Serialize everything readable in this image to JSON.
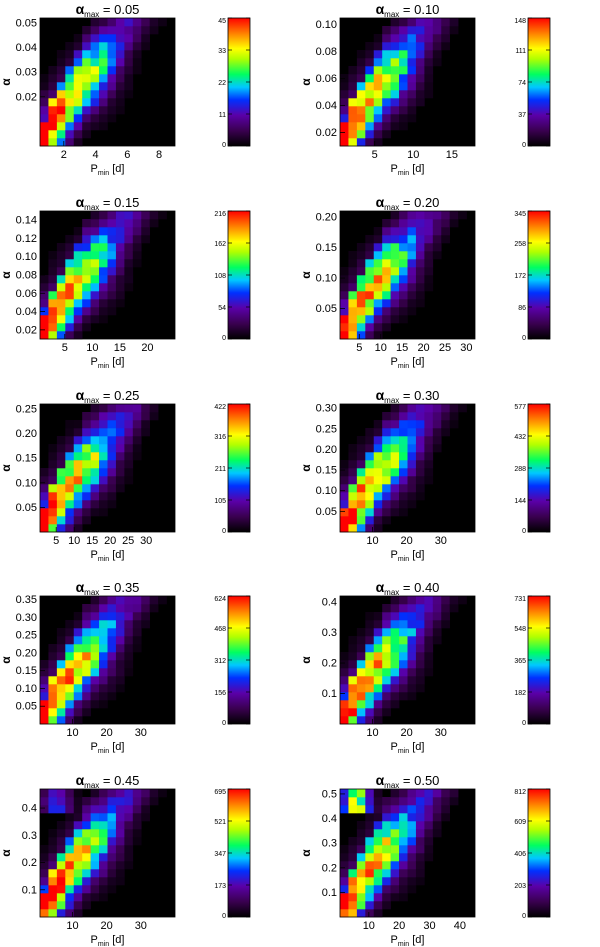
{
  "figure": {
    "title_symbol": "α",
    "title_sub": "max",
    "title_eq": " = ",
    "y_label": "α",
    "x_label_main": "P",
    "x_label_sub": "min",
    "x_label_unit": " [d]"
  },
  "chart_data": [
    {
      "type": "heatmap",
      "alpha_max": "0.05",
      "xlabel": "P_min [d]",
      "ylabel": "α",
      "xlim": [
        0.5,
        9.0
      ],
      "ylim": [
        0.0,
        0.052
      ],
      "x_ticks": [
        2,
        4,
        6,
        8
      ],
      "x_tick_labels": [
        "2",
        "4",
        "6",
        "8"
      ],
      "y_ticks": [
        0.02,
        0.03,
        0.04,
        0.05
      ],
      "y_tick_labels": [
        "0.02",
        "0.03",
        "0.04",
        "0.05"
      ],
      "colorbar_ticks": [
        "0",
        "11",
        "22",
        "33",
        "45"
      ],
      "colorbar_max": 45,
      "peak_count": 45,
      "description_of_peak": "highest density near small P_min and small alpha"
    },
    {
      "type": "heatmap",
      "alpha_max": "0.10",
      "xlabel": "P_min [d]",
      "ylabel": "α",
      "xlim": [
        0.5,
        18.0
      ],
      "ylim": [
        0.01,
        0.105
      ],
      "x_ticks": [
        5,
        10,
        15
      ],
      "x_tick_labels": [
        "5",
        "10",
        "15"
      ],
      "y_ticks": [
        0.02,
        0.04,
        0.06,
        0.08,
        0.1
      ],
      "y_tick_labels": [
        "0.02",
        "0.04",
        "0.06",
        "0.08",
        "0.10"
      ],
      "colorbar_ticks": [
        "0",
        "37",
        "74",
        "111",
        "148"
      ],
      "colorbar_max": 148,
      "peak_count": 148
    },
    {
      "type": "heatmap",
      "alpha_max": "0.15",
      "xlabel": "P_min [d]",
      "ylabel": "α",
      "xlim": [
        0.5,
        25.0
      ],
      "ylim": [
        0.01,
        0.15
      ],
      "x_ticks": [
        5,
        10,
        15,
        20
      ],
      "x_tick_labels": [
        "5",
        "10",
        "15",
        "20"
      ],
      "y_ticks": [
        0.02,
        0.04,
        0.06,
        0.08,
        0.1,
        0.12,
        0.14
      ],
      "y_tick_labels": [
        "0.02",
        "0.04",
        "0.06",
        "0.08",
        "0.10",
        "0.12",
        "0.14"
      ],
      "colorbar_ticks": [
        "0",
        "54",
        "108",
        "162",
        "216"
      ],
      "colorbar_max": 216,
      "peak_count": 216
    },
    {
      "type": "heatmap",
      "alpha_max": "0.20",
      "xlabel": "P_min [d]",
      "ylabel": "α",
      "xlim": [
        0.5,
        32.0
      ],
      "ylim": [
        0.0,
        0.21
      ],
      "x_ticks": [
        5,
        10,
        15,
        20,
        25,
        30
      ],
      "x_tick_labels": [
        "5",
        "10",
        "15",
        "20",
        "25",
        "30"
      ],
      "y_ticks": [
        0.05,
        0.1,
        0.15,
        0.2
      ],
      "y_tick_labels": [
        "0.05",
        "0.10",
        "0.15",
        "0.20"
      ],
      "colorbar_ticks": [
        "0",
        "86",
        "172",
        "258",
        "345"
      ],
      "colorbar_max": 345,
      "peak_count": 345
    },
    {
      "type": "heatmap",
      "alpha_max": "0.25",
      "xlabel": "P_min [d]",
      "ylabel": "α",
      "xlim": [
        0.5,
        38.0
      ],
      "ylim": [
        0.0,
        0.26
      ],
      "x_ticks": [
        5,
        10,
        15,
        20,
        25,
        30
      ],
      "x_tick_labels": [
        "5",
        "10",
        "15",
        "20",
        "25",
        "30"
      ],
      "y_ticks": [
        0.05,
        0.1,
        0.15,
        0.2,
        0.25
      ],
      "y_tick_labels": [
        "0.05",
        "0.10",
        "0.15",
        "0.20",
        "0.25"
      ],
      "colorbar_ticks": [
        "0",
        "105",
        "211",
        "316",
        "422"
      ],
      "colorbar_max": 422,
      "peak_count": 422
    },
    {
      "type": "heatmap",
      "alpha_max": "0.30",
      "xlabel": "P_min [d]",
      "ylabel": "α",
      "xlim": [
        0.5,
        40.0
      ],
      "ylim": [
        0.0,
        0.31
      ],
      "x_ticks": [
        10,
        20,
        30
      ],
      "x_tick_labels": [
        "10",
        "20",
        "30"
      ],
      "y_ticks": [
        0.05,
        0.1,
        0.15,
        0.2,
        0.25,
        0.3
      ],
      "y_tick_labels": [
        "0.05",
        "0.10",
        "0.15",
        "0.20",
        "0.25",
        "0.30"
      ],
      "colorbar_ticks": [
        "0",
        "144",
        "288",
        "432",
        "577"
      ],
      "colorbar_max": 577,
      "peak_count": 577
    },
    {
      "type": "heatmap",
      "alpha_max": "0.35",
      "xlabel": "P_min [d]",
      "ylabel": "α",
      "xlim": [
        0.5,
        40.0
      ],
      "ylim": [
        0.0,
        0.36
      ],
      "x_ticks": [
        10,
        20,
        30
      ],
      "x_tick_labels": [
        "10",
        "20",
        "30"
      ],
      "y_ticks": [
        0.05,
        0.1,
        0.15,
        0.2,
        0.25,
        0.3,
        0.35
      ],
      "y_tick_labels": [
        "0.05",
        "0.10",
        "0.15",
        "0.20",
        "0.25",
        "0.30",
        "0.35"
      ],
      "colorbar_ticks": [
        "0",
        "156",
        "312",
        "468",
        "624"
      ],
      "colorbar_max": 624,
      "peak_count": 624
    },
    {
      "type": "heatmap",
      "alpha_max": "0.40",
      "xlabel": "P_min [d]",
      "ylabel": "α",
      "xlim": [
        0.5,
        40.0
      ],
      "ylim": [
        0.0,
        0.42
      ],
      "x_ticks": [
        10,
        20,
        30
      ],
      "x_tick_labels": [
        "10",
        "20",
        "30"
      ],
      "y_ticks": [
        0.1,
        0.2,
        0.3,
        0.4
      ],
      "y_tick_labels": [
        "0.1",
        "0.2",
        "0.3",
        "0.4"
      ],
      "colorbar_ticks": [
        "0",
        "182",
        "365",
        "548",
        "731"
      ],
      "colorbar_max": 731,
      "peak_count": 731
    },
    {
      "type": "heatmap",
      "alpha_max": "0.45",
      "xlabel": "P_min [d]",
      "ylabel": "α",
      "xlim": [
        0.5,
        40.0
      ],
      "ylim": [
        0.0,
        0.47
      ],
      "x_ticks": [
        10,
        20,
        30
      ],
      "x_tick_labels": [
        "10",
        "20",
        "30"
      ],
      "y_ticks": [
        0.1,
        0.2,
        0.3,
        0.4
      ],
      "y_tick_labels": [
        "0.1",
        "0.2",
        "0.3",
        "0.4"
      ],
      "colorbar_ticks": [
        "0",
        "173",
        "347",
        "521",
        "695"
      ],
      "colorbar_max": 695,
      "peak_count": 695
    },
    {
      "type": "heatmap",
      "alpha_max": "0.50",
      "xlabel": "P_min [d]",
      "ylabel": "α",
      "xlim": [
        0.5,
        45.0
      ],
      "ylim": [
        0.0,
        0.52
      ],
      "x_ticks": [
        10,
        20,
        30,
        40
      ],
      "x_tick_labels": [
        "10",
        "20",
        "30",
        "40"
      ],
      "y_ticks": [
        0.1,
        0.2,
        0.3,
        0.4,
        0.5
      ],
      "y_tick_labels": [
        "0.1",
        "0.2",
        "0.3",
        "0.4",
        "0.5"
      ],
      "colorbar_ticks": [
        "0",
        "203",
        "406",
        "609",
        "812"
      ],
      "colorbar_max": 812,
      "peak_count": 812
    }
  ],
  "colormap": {
    "name": "rainbow (IDL-like)",
    "stops": [
      "#000000",
      "#3a0050",
      "#5a00a8",
      "#0030ff",
      "#00c8ff",
      "#00ff60",
      "#b0ff00",
      "#ffff00",
      "#ff8000",
      "#ff0000"
    ]
  }
}
